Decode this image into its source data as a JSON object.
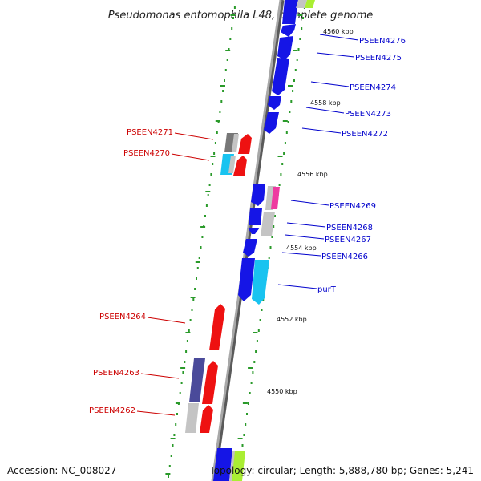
{
  "title": "Pseudomonas entomophila L48, complete genome",
  "accession_text": "Accession: NC_008027",
  "topology_text": "Topology: circular; Length: 5,888,780 bp; Genes: 5,241",
  "colors": {
    "backbone": "#9a9a9a",
    "backbone_shadow": "#5a5a5a",
    "tick": "#2a9a2a",
    "label_right": "#0000cc",
    "label_left": "#cc0000",
    "blue": "#1515e6",
    "red": "#ee1111",
    "cyan": "#19c3f0",
    "gray": "#c4c4c4",
    "darkgray": "#777777",
    "pink": "#ee3aa0",
    "indigo": "#4a4a9a",
    "lime": "#aaee33"
  },
  "positions": [
    {
      "label": "4560 kbp"
    },
    {
      "label": "4558 kbp"
    },
    {
      "label": "4556 kbp"
    },
    {
      "label": "4554 kbp"
    },
    {
      "label": "4552 kbp"
    },
    {
      "label": "4550 kbp"
    }
  ],
  "genes_right": [
    {
      "name": "PSEEN4276"
    },
    {
      "name": "PSEEN4275"
    },
    {
      "name": "PSEEN4274"
    },
    {
      "name": "PSEEN4273"
    },
    {
      "name": "PSEEN4272"
    },
    {
      "name": "PSEEN4269"
    },
    {
      "name": "PSEEN4268"
    },
    {
      "name": "PSEEN4267"
    },
    {
      "name": "PSEEN4266"
    },
    {
      "name": "purT"
    }
  ],
  "genes_left": [
    {
      "name": "PSEEN4271"
    },
    {
      "name": "PSEEN4270"
    },
    {
      "name": "PSEEN4264"
    },
    {
      "name": "PSEEN4263"
    },
    {
      "name": "PSEEN4262"
    }
  ]
}
